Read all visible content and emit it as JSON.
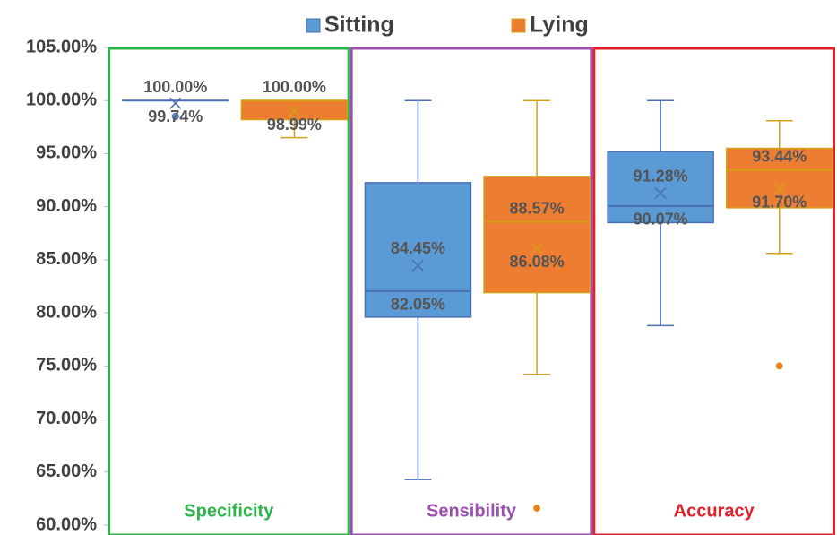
{
  "chart_data": {
    "type": "box",
    "categories": [
      "Specificity",
      "Sensibility",
      "Accuracy"
    ],
    "category_colors": [
      "#2eb24a",
      "#9b4fb0",
      "#e0202a"
    ],
    "ylim": [
      60,
      105
    ],
    "yticks": [
      {
        "value": 60,
        "label": "60.00%"
      },
      {
        "value": 65,
        "label": "65.00%"
      },
      {
        "value": 70,
        "label": "70.00%"
      },
      {
        "value": 75,
        "label": "75.00%"
      },
      {
        "value": 80,
        "label": "80.00%"
      },
      {
        "value": 85,
        "label": "85.00%"
      },
      {
        "value": 90,
        "label": "90.00%"
      },
      {
        "value": 95,
        "label": "95.00%"
      },
      {
        "value": 100,
        "label": "100.00%"
      },
      {
        "value": 105,
        "label": "105.00%"
      }
    ],
    "legend": "top",
    "series": [
      {
        "name": "Sitting",
        "color": "#5b9bd5",
        "line_color": "#4a6fb5",
        "min": [
          100,
          64.3,
          78.8
        ],
        "q1": [
          100,
          79.6,
          88.5
        ],
        "median": [
          100,
          82.05,
          90.07
        ],
        "q3": [
          100,
          92.26,
          95.2
        ],
        "max": [
          100,
          100,
          100
        ],
        "mean": [
          99.74,
          84.45,
          91.28
        ],
        "median_labels": [
          "100.00%",
          "82.05%",
          "90.07%"
        ],
        "mean_labels": [
          "99.74%",
          "84.45%",
          "91.28%"
        ],
        "outliers": [
          [
            98.5
          ],
          [],
          []
        ]
      },
      {
        "name": "Lying",
        "color": "#ed7d31",
        "line_color": "#d4a017",
        "min": [
          96.5,
          74.2,
          85.6
        ],
        "q1": [
          98.2,
          81.9,
          89.9
        ],
        "median": [
          100,
          88.57,
          93.44
        ],
        "q3": [
          100,
          92.85,
          95.5
        ],
        "max": [
          100,
          100,
          98.1
        ],
        "mean": [
          98.99,
          86.08,
          91.7
        ],
        "median_labels": [
          "100.00%",
          "88.57%",
          "93.44%"
        ],
        "mean_labels": [
          "98.99%",
          "86.08%",
          "91.70%"
        ],
        "outliers": [
          [],
          [
            61.6
          ],
          [
            75
          ]
        ]
      }
    ]
  }
}
